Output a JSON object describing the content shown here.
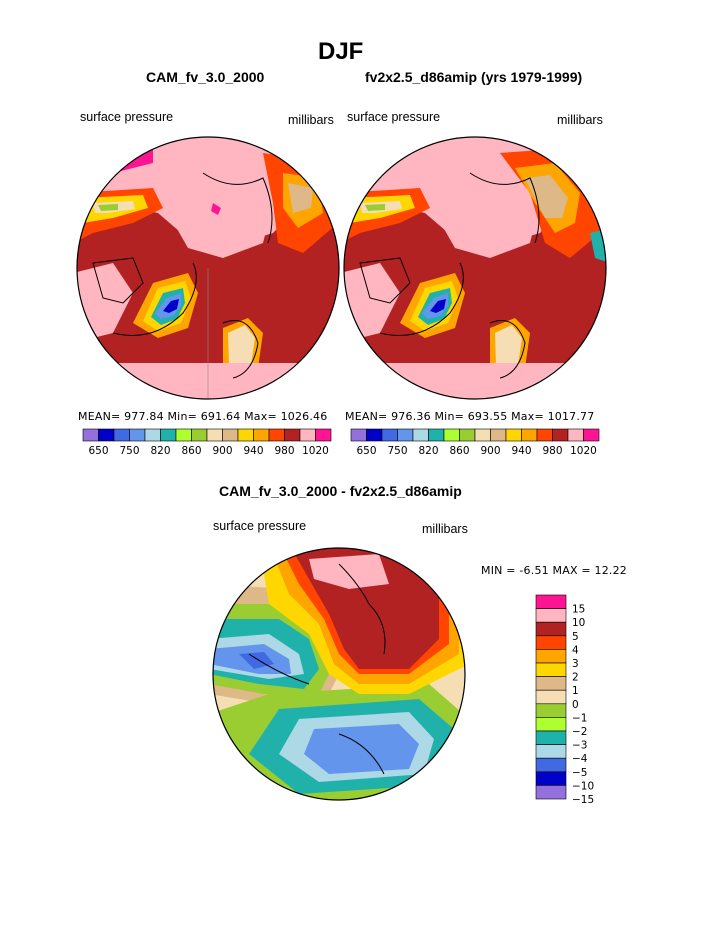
{
  "title": "DJF",
  "panels": [
    {
      "title": "CAM_fv_3.0_2000",
      "left_label": "surface pressure",
      "right_label": "millibars",
      "stats": "MEAN= 977.84   Min= 691.64   Max= 1026.46"
    },
    {
      "title": "fv2x2.5_d86amip (yrs 1979-1999)",
      "left_label": "surface pressure",
      "right_label": "millibars",
      "stats": "MEAN= 976.36   Min= 693.55   Max= 1017.77"
    }
  ],
  "abs_colorbar": {
    "colors": [
      "#9370db",
      "#0000c8",
      "#4169e1",
      "#6495ed",
      "#add8e6",
      "#20b2aa",
      "#adff2f",
      "#9acd32",
      "#f5deb3",
      "#deb887",
      "#ffd700",
      "#ffa500",
      "#ff4500",
      "#b22222",
      "#ffb6c1",
      "#ff1493"
    ],
    "ticks": [
      "650",
      "750",
      "820",
      "860",
      "900",
      "940",
      "980",
      "1020"
    ]
  },
  "diff": {
    "title": "CAM_fv_3.0_2000 - fv2x2.5_d86amip",
    "left_label": "surface pressure",
    "right_label": "millibars",
    "stats": "MIN =   -6.51  MAX =   12.22",
    "colorbar": {
      "colors": [
        "#9370db",
        "#0000c8",
        "#4169e1",
        "#add8e6",
        "#20b2aa",
        "#adff2f",
        "#9acd32",
        "#f5deb3",
        "#deb887",
        "#ffd700",
        "#ffa500",
        "#ff4500",
        "#b22222",
        "#ffb6c1",
        "#ff1493"
      ],
      "ticks": [
        "15",
        "10",
        "5",
        "4",
        "3",
        "2",
        "1",
        "0",
        "−1",
        "−2",
        "−3",
        "−4",
        "−5",
        "−10",
        "−15"
      ]
    }
  },
  "chart_data": [
    {
      "type": "heatmap",
      "projection": "polar stereographic, north pole",
      "title": "CAM_fv_3.0_2000",
      "variable": "surface pressure",
      "units": "millibars",
      "mean": 977.84,
      "min": 691.64,
      "max": 1026.46,
      "levels": [
        650,
        750,
        820,
        860,
        900,
        940,
        980,
        1020
      ]
    },
    {
      "type": "heatmap",
      "projection": "polar stereographic, north pole",
      "title": "fv2x2.5_d86amip (yrs 1979-1999)",
      "variable": "surface pressure",
      "units": "millibars",
      "mean": 976.36,
      "min": 693.55,
      "max": 1017.77,
      "levels": [
        650,
        750,
        820,
        860,
        900,
        940,
        980,
        1020
      ]
    },
    {
      "type": "heatmap",
      "projection": "polar stereographic, north pole",
      "title": "CAM_fv_3.0_2000 - fv2x2.5_d86amip",
      "variable": "surface pressure",
      "units": "millibars",
      "min": -6.51,
      "max": 12.22,
      "levels": [
        -15,
        -10,
        -5,
        -4,
        -3,
        -2,
        -1,
        0,
        1,
        2,
        3,
        4,
        5,
        10,
        15
      ]
    }
  ]
}
